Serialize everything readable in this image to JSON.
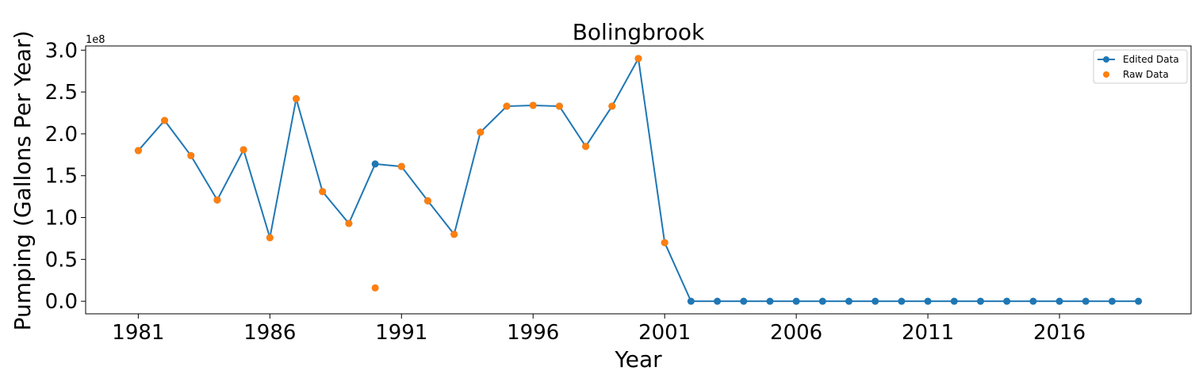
{
  "chart_data": {
    "type": "line",
    "title": "Bolingbrook",
    "xlabel": "Year",
    "ylabel": "Pumping (Gallons Per Year)",
    "y_offset_label": "1e8",
    "xlim": [
      1979,
      2021
    ],
    "ylim": [
      -0.15,
      3.05
    ],
    "x_ticks": [
      1981,
      1986,
      1991,
      1996,
      2001,
      2006,
      2011,
      2016
    ],
    "x_tick_labels": [
      "1981",
      "1986",
      "1991",
      "1996",
      "2001",
      "2006",
      "2011",
      "2016"
    ],
    "y_ticks": [
      0.0,
      0.5,
      1.0,
      1.5,
      2.0,
      2.5,
      3.0
    ],
    "y_tick_labels": [
      "0.0",
      "0.5",
      "1.0",
      "1.5",
      "2.0",
      "2.5",
      "3.0"
    ],
    "legend_position": "top-right",
    "grid": false,
    "series": [
      {
        "name": "Edited Data",
        "style": "line-with-markers",
        "color": "#1f77b4",
        "x": [
          1981,
          1982,
          1983,
          1984,
          1985,
          1986,
          1987,
          1988,
          1989,
          1990,
          1991,
          1992,
          1993,
          1994,
          1995,
          1996,
          1997,
          1998,
          1999,
          2000,
          2001,
          2002,
          2003,
          2004,
          2005,
          2006,
          2007,
          2008,
          2009,
          2010,
          2011,
          2012,
          2013,
          2014,
          2015,
          2016,
          2017,
          2018,
          2019
        ],
        "y": [
          1.8,
          2.16,
          1.74,
          1.21,
          1.81,
          0.76,
          2.42,
          1.31,
          0.93,
          1.64,
          1.61,
          1.2,
          0.8,
          2.02,
          2.33,
          2.34,
          2.33,
          1.85,
          2.33,
          2.9,
          0.7,
          0,
          0,
          0,
          0,
          0,
          0,
          0,
          0,
          0,
          0,
          0,
          0,
          0,
          0,
          0,
          0,
          0,
          0
        ]
      },
      {
        "name": "Raw Data",
        "style": "markers",
        "color": "#ff7f0e",
        "x": [
          1981,
          1982,
          1983,
          1984,
          1985,
          1986,
          1987,
          1988,
          1989,
          1990,
          1991,
          1992,
          1993,
          1994,
          1995,
          1996,
          1997,
          1998,
          1999,
          2000,
          2001
        ],
        "y": [
          1.8,
          2.16,
          1.74,
          1.21,
          1.81,
          0.76,
          2.42,
          1.31,
          0.93,
          0.16,
          1.61,
          1.2,
          0.8,
          2.02,
          2.33,
          2.34,
          2.33,
          1.85,
          2.33,
          2.9,
          0.7
        ]
      }
    ]
  }
}
